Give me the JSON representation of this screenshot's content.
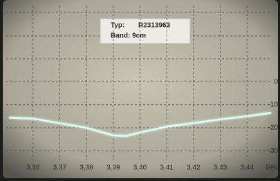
{
  "chart_data": {
    "type": "line",
    "annotation": {
      "type_label": "Typ:",
      "type_value": "R2313963",
      "band": "Band: 9cm"
    },
    "x_unit": "GHz",
    "x": [
      3.351,
      3.36,
      3.37,
      3.38,
      3.39,
      3.395,
      3.4,
      3.41,
      3.42,
      3.43,
      3.44,
      3.449
    ],
    "values": [
      -15.6,
      -16,
      -18,
      -20,
      -23.3,
      -23.5,
      -22,
      -19.5,
      -18,
      -16.3,
      -15,
      -13.5
    ],
    "color": "#d9fff6",
    "xlim": [
      3.35,
      3.45
    ],
    "xticks": [
      {
        "value": 3.36,
        "label": "3,36"
      },
      {
        "value": 3.37,
        "label": "3,37"
      },
      {
        "value": 3.38,
        "label": "3,38"
      },
      {
        "value": 3.39,
        "label": "3,39"
      },
      {
        "value": 3.4,
        "label": "3,40"
      },
      {
        "value": 3.41,
        "label": "3,41"
      },
      {
        "value": 3.42,
        "label": "3,42"
      },
      {
        "value": 3.43,
        "label": "3,43"
      },
      {
        "value": 3.44,
        "label": "3,44"
      }
    ],
    "ylim": [
      -35,
      34
    ],
    "yticks": [
      0,
      -10,
      -20,
      -30
    ],
    "grid": true
  }
}
